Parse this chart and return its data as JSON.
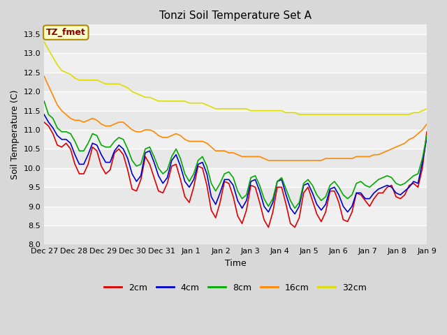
{
  "title": "Tonzi Soil Temperature Set A",
  "xlabel": "Time",
  "ylabel": "Soil Temperature (C)",
  "ylim": [
    8.0,
    13.75
  ],
  "yticks": [
    8.0,
    8.5,
    9.0,
    9.5,
    10.0,
    10.5,
    11.0,
    11.5,
    12.0,
    12.5,
    13.0,
    13.5
  ],
  "xtick_labels": [
    "Dec 27",
    "Dec 28",
    "Dec 29",
    "Dec 30",
    "Dec 31",
    "Jan 1",
    "Jan 2",
    "Jan 3",
    "Jan 4",
    "Jan 5",
    "Jan 6",
    "Jan 7",
    "Jan 8",
    "Jan 9"
  ],
  "annotation_text": "TZ_fmet",
  "annotation_color": "#880000",
  "annotation_bg": "#ffffcc",
  "annotation_border": "#aa8800",
  "series_colors": {
    "2cm": "#dd0000",
    "4cm": "#0000cc",
    "8cm": "#00aa00",
    "16cm": "#ff8800",
    "32cm": "#dddd00"
  },
  "legend_labels": [
    "2cm",
    "4cm",
    "8cm",
    "16cm",
    "32cm"
  ],
  "fig_bg": "#f0f0f0",
  "plot_bg": "#f0f0f0",
  "band_colors": [
    "#e8e8e8",
    "#f4f4f4"
  ],
  "grid_color": "#ffffff",
  "linewidth": 1.2,
  "title_fontsize": 11,
  "tick_fontsize": 8,
  "label_fontsize": 9,
  "legend_fontsize": 9,
  "data_2cm": [
    11.2,
    11.1,
    10.9,
    10.6,
    10.55,
    10.65,
    10.5,
    10.1,
    9.85,
    9.85,
    10.1,
    10.55,
    10.45,
    10.05,
    9.85,
    9.95,
    10.4,
    10.5,
    10.35,
    9.95,
    9.45,
    9.4,
    9.7,
    10.3,
    10.1,
    9.75,
    9.4,
    9.35,
    9.6,
    10.05,
    10.1,
    9.7,
    9.25,
    9.1,
    9.5,
    10.05,
    10.0,
    9.55,
    8.9,
    8.7,
    9.1,
    9.65,
    9.6,
    9.25,
    8.75,
    8.55,
    8.9,
    9.55,
    9.5,
    9.1,
    8.65,
    8.45,
    8.85,
    9.5,
    9.5,
    9.05,
    8.55,
    8.45,
    8.7,
    9.35,
    9.5,
    9.15,
    8.8,
    8.6,
    8.85,
    9.4,
    9.4,
    9.1,
    8.65,
    8.6,
    8.85,
    9.35,
    9.3,
    9.15,
    9.0,
    9.2,
    9.35,
    9.35,
    9.5,
    9.55,
    9.25,
    9.2,
    9.3,
    9.55,
    9.6,
    9.5,
    10.0,
    10.95
  ],
  "data_4cm": [
    11.4,
    11.2,
    11.05,
    10.85,
    10.75,
    10.75,
    10.65,
    10.35,
    10.1,
    10.1,
    10.35,
    10.65,
    10.6,
    10.35,
    10.15,
    10.15,
    10.45,
    10.6,
    10.5,
    10.25,
    9.85,
    9.65,
    9.8,
    10.4,
    10.45,
    10.15,
    9.8,
    9.6,
    9.75,
    10.2,
    10.35,
    10.05,
    9.65,
    9.5,
    9.7,
    10.1,
    10.15,
    9.85,
    9.25,
    9.05,
    9.35,
    9.7,
    9.7,
    9.55,
    9.15,
    8.95,
    9.15,
    9.65,
    9.7,
    9.4,
    9.0,
    8.85,
    9.1,
    9.65,
    9.7,
    9.3,
    8.95,
    8.8,
    9.0,
    9.55,
    9.6,
    9.35,
    9.05,
    8.9,
    9.05,
    9.45,
    9.5,
    9.3,
    9.0,
    8.85,
    9.0,
    9.35,
    9.35,
    9.2,
    9.2,
    9.35,
    9.45,
    9.5,
    9.55,
    9.5,
    9.35,
    9.3,
    9.4,
    9.5,
    9.65,
    9.6,
    10.15,
    10.8
  ],
  "data_8cm": [
    11.75,
    11.4,
    11.3,
    11.05,
    10.95,
    10.95,
    10.9,
    10.7,
    10.45,
    10.45,
    10.65,
    10.9,
    10.85,
    10.6,
    10.55,
    10.55,
    10.7,
    10.8,
    10.75,
    10.5,
    10.2,
    10.05,
    10.1,
    10.5,
    10.55,
    10.3,
    10.0,
    9.85,
    9.95,
    10.3,
    10.5,
    10.25,
    9.85,
    9.65,
    9.85,
    10.2,
    10.3,
    10.05,
    9.6,
    9.4,
    9.6,
    9.85,
    9.9,
    9.75,
    9.4,
    9.2,
    9.3,
    9.75,
    9.8,
    9.55,
    9.2,
    9.0,
    9.2,
    9.65,
    9.75,
    9.45,
    9.15,
    8.95,
    9.1,
    9.6,
    9.7,
    9.55,
    9.3,
    9.15,
    9.25,
    9.55,
    9.65,
    9.5,
    9.3,
    9.2,
    9.3,
    9.6,
    9.65,
    9.55,
    9.5,
    9.6,
    9.7,
    9.75,
    9.8,
    9.75,
    9.6,
    9.55,
    9.6,
    9.7,
    9.8,
    9.85,
    10.25,
    10.85
  ],
  "data_16cm": [
    12.4,
    12.15,
    11.9,
    11.65,
    11.5,
    11.4,
    11.3,
    11.25,
    11.25,
    11.2,
    11.25,
    11.3,
    11.25,
    11.15,
    11.1,
    11.1,
    11.15,
    11.2,
    11.2,
    11.1,
    11.0,
    10.95,
    10.95,
    11.0,
    11.0,
    10.95,
    10.85,
    10.8,
    10.8,
    10.85,
    10.9,
    10.85,
    10.75,
    10.7,
    10.7,
    10.7,
    10.7,
    10.65,
    10.55,
    10.45,
    10.45,
    10.45,
    10.4,
    10.4,
    10.35,
    10.3,
    10.3,
    10.3,
    10.3,
    10.3,
    10.25,
    10.2,
    10.2,
    10.2,
    10.2,
    10.2,
    10.2,
    10.2,
    10.2,
    10.2,
    10.2,
    10.2,
    10.2,
    10.2,
    10.25,
    10.25,
    10.25,
    10.25,
    10.25,
    10.25,
    10.25,
    10.3,
    10.3,
    10.3,
    10.3,
    10.35,
    10.35,
    10.4,
    10.45,
    10.5,
    10.55,
    10.6,
    10.65,
    10.75,
    10.8,
    10.9,
    11.0,
    11.15
  ],
  "data_32cm": [
    13.3,
    13.1,
    12.9,
    12.7,
    12.55,
    12.5,
    12.45,
    12.35,
    12.3,
    12.3,
    12.3,
    12.3,
    12.3,
    12.25,
    12.2,
    12.2,
    12.2,
    12.2,
    12.15,
    12.1,
    12.0,
    11.95,
    11.9,
    11.85,
    11.85,
    11.8,
    11.75,
    11.75,
    11.75,
    11.75,
    11.75,
    11.75,
    11.75,
    11.7,
    11.7,
    11.7,
    11.7,
    11.65,
    11.6,
    11.55,
    11.55,
    11.55,
    11.55,
    11.55,
    11.55,
    11.55,
    11.55,
    11.5,
    11.5,
    11.5,
    11.5,
    11.5,
    11.5,
    11.5,
    11.5,
    11.45,
    11.45,
    11.45,
    11.4,
    11.4,
    11.4,
    11.4,
    11.4,
    11.4,
    11.4,
    11.4,
    11.4,
    11.4,
    11.4,
    11.4,
    11.4,
    11.4,
    11.4,
    11.4,
    11.4,
    11.4,
    11.4,
    11.4,
    11.4,
    11.4,
    11.4,
    11.4,
    11.4,
    11.4,
    11.45,
    11.45,
    11.5,
    11.55
  ]
}
